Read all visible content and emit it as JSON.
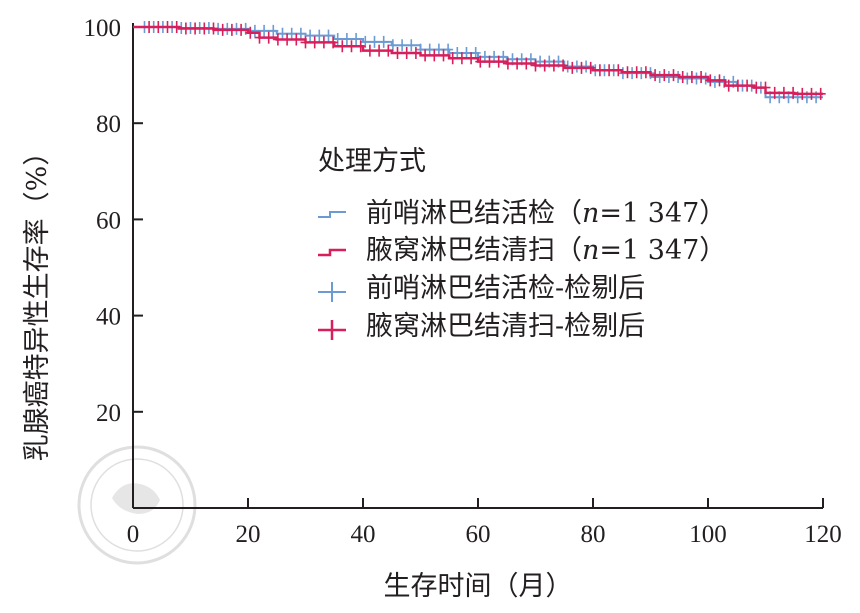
{
  "chart_data": {
    "type": "line",
    "title": "",
    "xlabel": "生存时间（月）",
    "ylabel": "乳腺癌特异性生存率（%）",
    "xlim": [
      0,
      120
    ],
    "ylim": [
      0,
      100
    ],
    "x_ticks": [
      "0",
      "20",
      "40",
      "60",
      "80",
      "100",
      "120"
    ],
    "y_ticks": [
      "20",
      "40",
      "60",
      "80",
      "100"
    ],
    "legend_title": "处理方式",
    "legend_position": "center-left",
    "grid": false,
    "series": [
      {
        "name": "前哨淋巴结活检（n=1 347）",
        "label_prefix": "前哨淋巴结活检（",
        "n_label": "n",
        "n_value": "=1 347）",
        "color": "#6b9bd2",
        "x": [
          0,
          8,
          14,
          20,
          25,
          30,
          35,
          40,
          45,
          50,
          55,
          60,
          65,
          70,
          75,
          80,
          85,
          90,
          95,
          100,
          105,
          108,
          110,
          115,
          120
        ],
        "y": [
          100,
          99.8,
          99.6,
          99.2,
          98.6,
          98.2,
          97.5,
          96.9,
          96.2,
          95.3,
          94.6,
          93.8,
          93.3,
          92.8,
          91.8,
          91.0,
          90.4,
          89.6,
          89.3,
          88.6,
          87.8,
          87.4,
          85.4,
          85.4,
          85.4
        ]
      },
      {
        "name": "腋窝淋巴结清扫（n=1 347）",
        "label_prefix": "腋窝淋巴结清扫（",
        "n_label": "n",
        "n_value": "=1 347）",
        "color": "#d81e5b",
        "x": [
          0,
          8,
          14,
          20,
          22,
          25,
          30,
          35,
          40,
          45,
          50,
          55,
          60,
          65,
          70,
          75,
          80,
          85,
          90,
          95,
          100,
          103,
          108,
          110,
          115,
          120
        ],
        "y": [
          100,
          99.7,
          99.4,
          98.8,
          97.8,
          97.4,
          96.8,
          96.0,
          95.1,
          94.6,
          94.1,
          93.5,
          92.8,
          92.4,
          92.0,
          91.5,
          91.0,
          90.6,
          90.0,
          89.6,
          88.9,
          87.8,
          87.4,
          86.3,
          86.1,
          86.1
        ]
      }
    ],
    "censor_legend": [
      {
        "name": "前哨淋巴结活检-检剔后",
        "color": "#6b9bd2"
      },
      {
        "name": "腋窝淋巴结清扫-检剔后",
        "color": "#d81e5b"
      }
    ]
  }
}
